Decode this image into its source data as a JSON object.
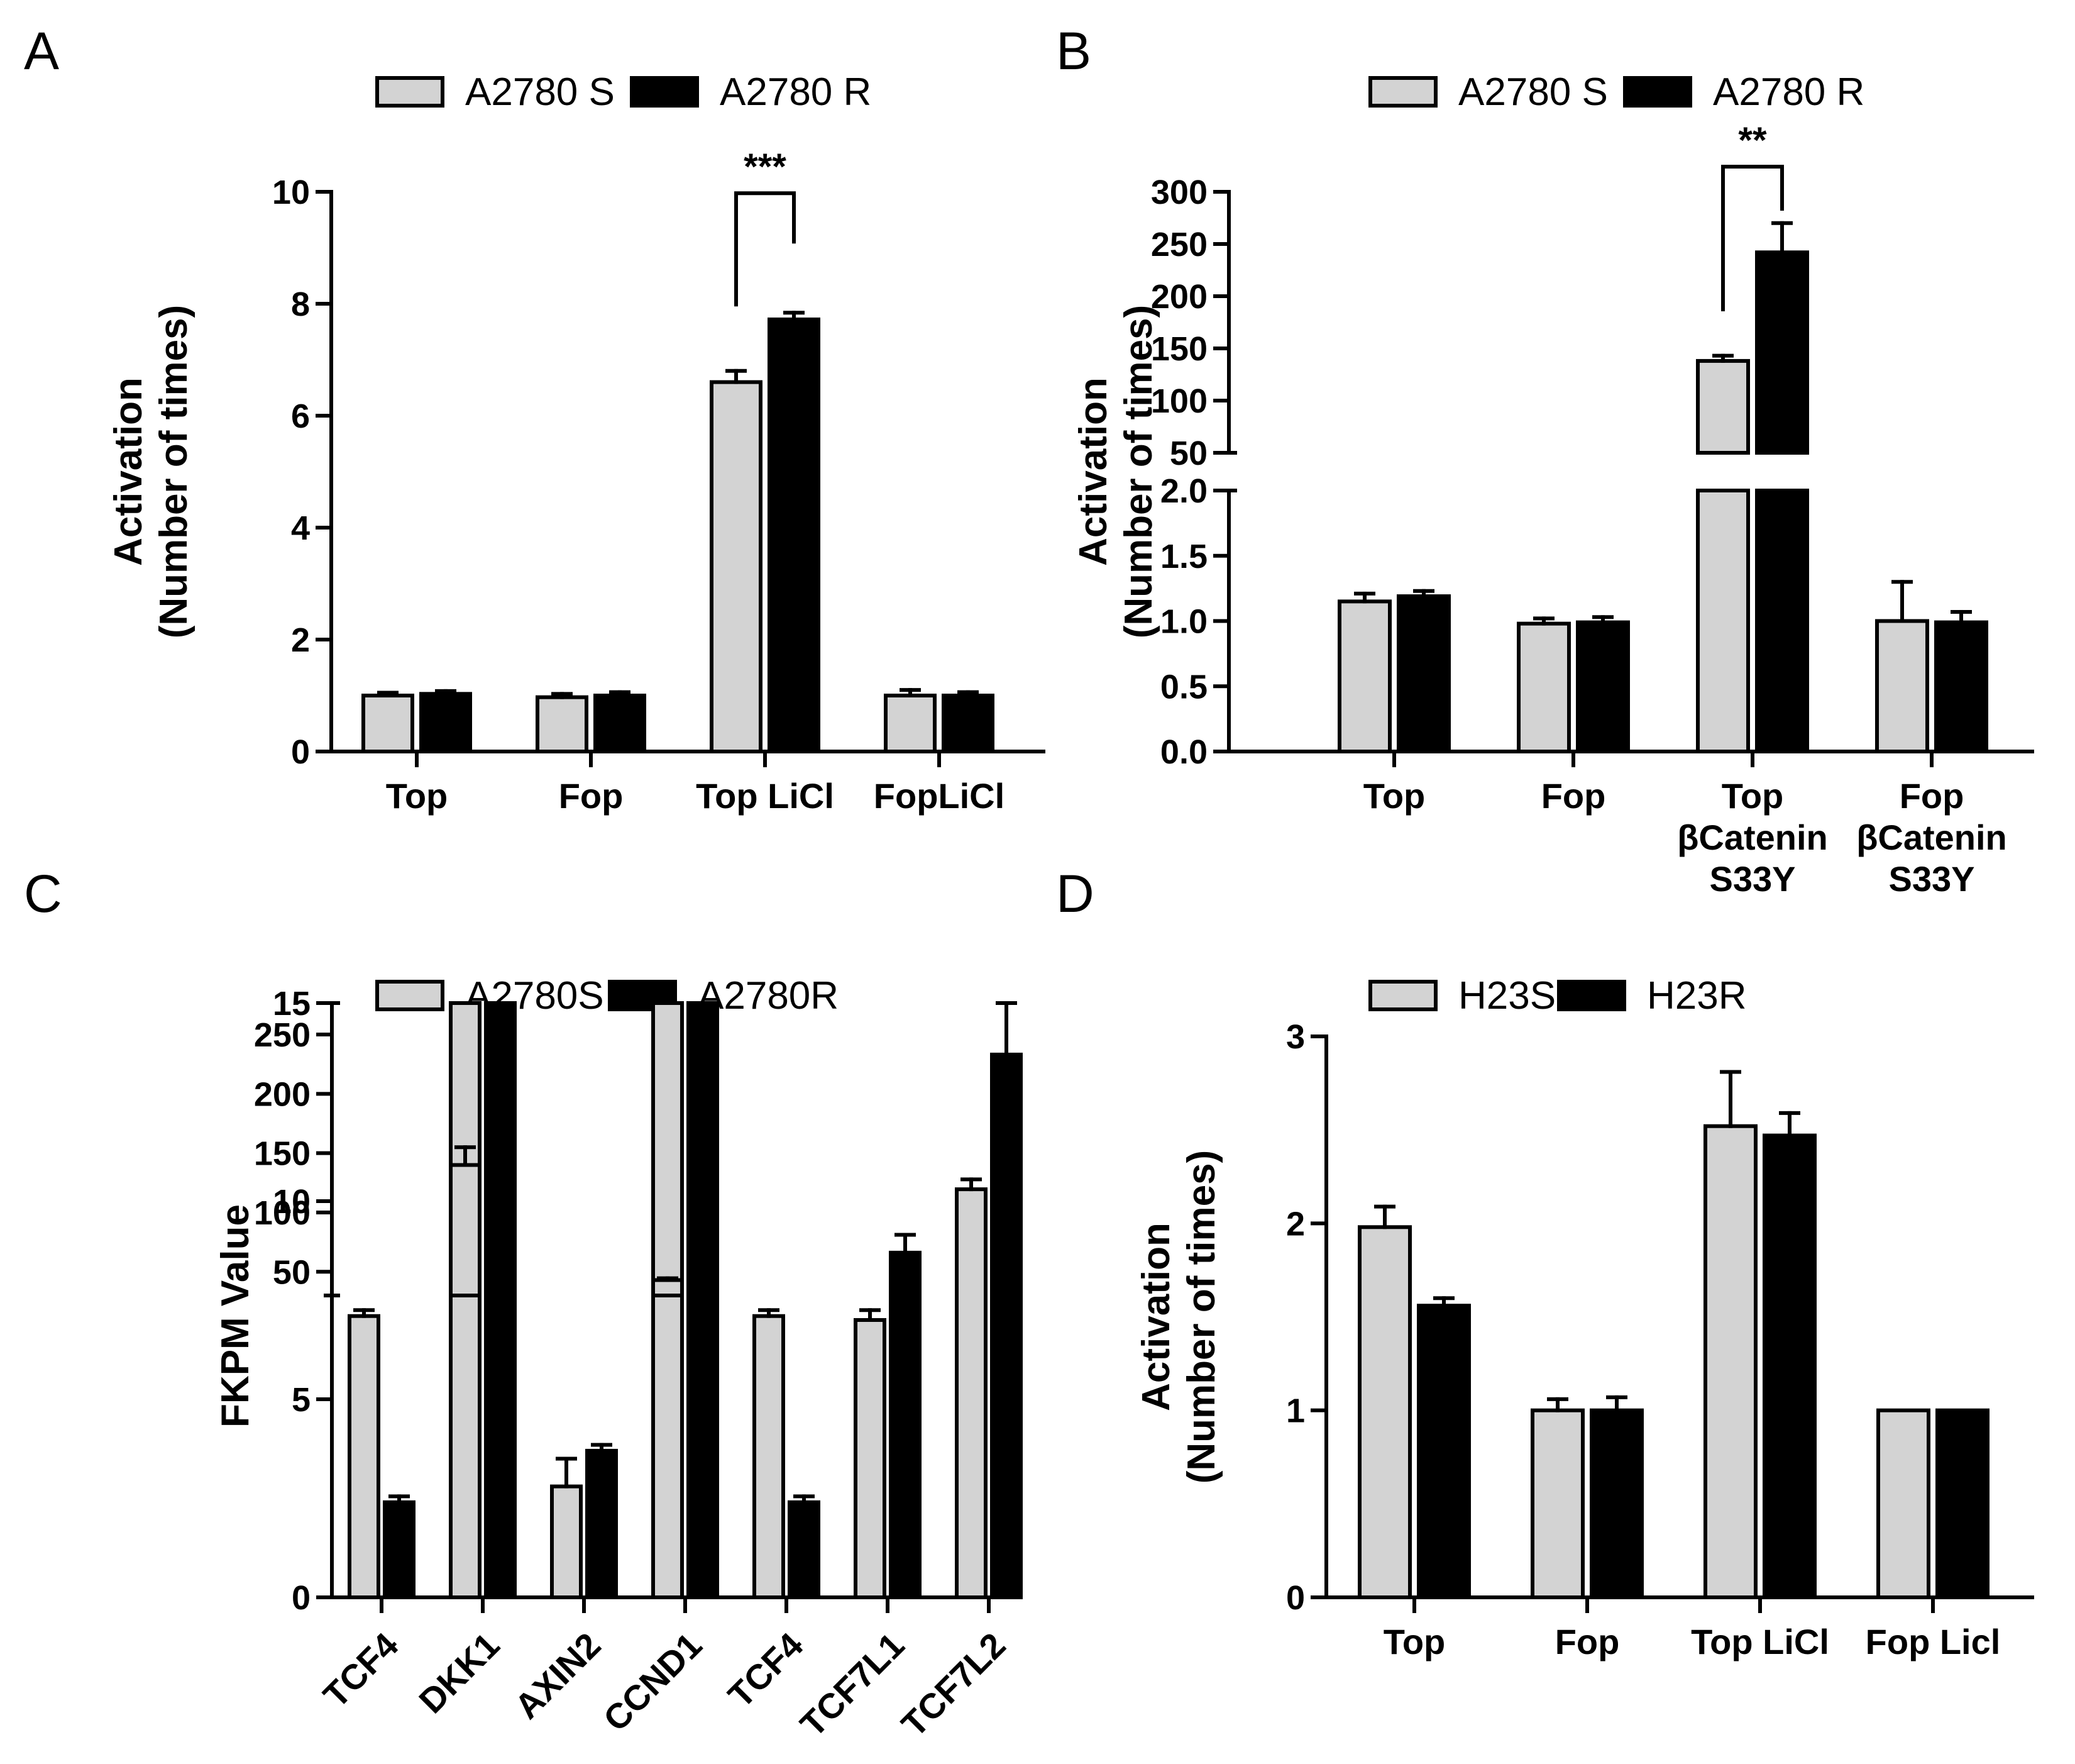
{
  "colors": {
    "series1": "#d3d3d3",
    "series2": "#000000",
    "stroke": "#000000"
  },
  "chart_data": [
    {
      "panel": "A",
      "type": "bar",
      "legend": [
        "A2780 S",
        "A2780 R"
      ],
      "ylabel": [
        "Activation",
        "(Number of times)"
      ],
      "categories": [
        [
          "Top"
        ],
        [
          "Fop"
        ],
        [
          "Top LiCl"
        ],
        [
          "FopLiCl"
        ]
      ],
      "ylim": [
        0,
        10
      ],
      "yticks": [
        0,
        2,
        4,
        6,
        8,
        10
      ],
      "series": [
        {
          "name": "A2780 S",
          "values": [
            1.0,
            0.97,
            6.6,
            1.0
          ],
          "errors": [
            0.05,
            0.06,
            0.2,
            0.1
          ]
        },
        {
          "name": "A2780 R",
          "values": [
            1.03,
            1.0,
            7.72,
            1.0
          ],
          "errors": [
            0.05,
            0.06,
            0.12,
            0.06
          ]
        }
      ],
      "significance": [
        {
          "category": 2,
          "label": "***"
        }
      ]
    },
    {
      "panel": "B",
      "type": "bar",
      "legend": [
        "A2780 S",
        "A2780 R"
      ],
      "ylabel": [
        "Activation",
        "(Number of times)"
      ],
      "categories": [
        [
          "Top"
        ],
        [
          "Fop"
        ],
        [
          "Top",
          "βCatenin",
          "S33Y"
        ],
        [
          "Fop",
          "βCatenin",
          "S33Y"
        ]
      ],
      "ylim_lower": [
        0,
        2.0
      ],
      "ylim_upper": [
        50,
        300
      ],
      "yticks_lower": [
        "0.0",
        "0.5",
        "1.0",
        "1.5",
        "2.0"
      ],
      "yticks_upper": [
        "50",
        "100",
        "150",
        "200",
        "250",
        "300"
      ],
      "series": [
        {
          "name": "A2780 S",
          "values": [
            1.15,
            0.98,
            138,
            1.0
          ],
          "errors": [
            0.06,
            0.04,
            5,
            0.3
          ]
        },
        {
          "name": "A2780 R",
          "values": [
            1.19,
            0.99,
            242,
            0.99
          ],
          "errors": [
            0.04,
            0.04,
            28,
            0.08
          ]
        }
      ],
      "significance": [
        {
          "category": 2,
          "label": "**"
        }
      ]
    },
    {
      "panel": "C",
      "type": "bar",
      "legend": [
        "A2780S",
        "A2780R"
      ],
      "ylabel": [
        "FKPM Value"
      ],
      "categories": [
        "TCF4",
        "DKK1",
        "AXIN2",
        "CCND1",
        "TCF4",
        "TCF7L1",
        "TCF7L2"
      ],
      "ylim_lower": [
        0,
        15
      ],
      "ylim_upper": [
        30,
        250
      ],
      "yticks_lower": [
        "0",
        "5",
        "10",
        "15"
      ],
      "yticks_upper": [
        "50",
        "100",
        "150",
        "200",
        "250"
      ],
      "series": [
        {
          "name": "A2780S",
          "values": [
            7.1,
            140,
            2.8,
            43,
            7.1,
            7.0,
            10.3
          ],
          "errors": [
            0.15,
            15,
            0.7,
            1.5,
            0.15,
            0.25,
            0.25
          ]
        },
        {
          "name": "A2780R",
          "values": [
            2.4,
            200,
            3.7,
            35,
            2.4,
            8.7,
            13.7
          ],
          "errors": [
            0.15,
            12,
            0.15,
            2,
            0.15,
            0.45,
            1.3
          ]
        }
      ]
    },
    {
      "panel": "D",
      "type": "bar",
      "legend": [
        "H23S",
        "H23R"
      ],
      "ylabel": [
        "Activation",
        "(Number of times)"
      ],
      "categories": [
        [
          "Top"
        ],
        [
          "Fop"
        ],
        [
          "Top LiCl"
        ],
        [
          "Fop Licl"
        ]
      ],
      "ylim": [
        0,
        3
      ],
      "yticks": [
        0,
        1,
        2,
        3
      ],
      "series": [
        {
          "name": "H23S",
          "values": [
            1.98,
            1.0,
            2.52,
            1.0
          ],
          "errors": [
            0.11,
            0.06,
            0.29,
            0
          ]
        },
        {
          "name": "H23R",
          "values": [
            1.56,
            1.0,
            2.47,
            1.0
          ],
          "errors": [
            0.04,
            0.07,
            0.12,
            0
          ]
        }
      ]
    }
  ]
}
